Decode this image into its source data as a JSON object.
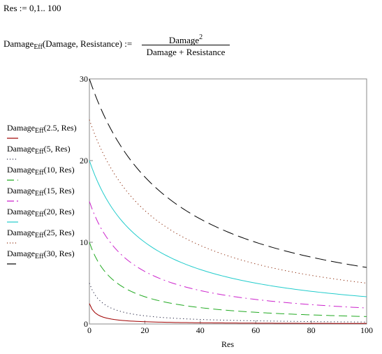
{
  "worksheet": {
    "range_definition": "Res := 0,1.. 100",
    "function_definition": {
      "lhs_base": "Damage",
      "lhs_sub": "Eff",
      "lhs_args": "(Damage, Resistance)",
      "assign_op": ":=",
      "numerator_base": "Damage",
      "numerator_exp": "2",
      "denominator": "Damage + Resistance"
    }
  },
  "chart_data": {
    "type": "line",
    "title": "",
    "xlabel": "Res",
    "ylabel": "",
    "xlim": [
      0,
      100
    ],
    "ylim": [
      0,
      30
    ],
    "x_ticks": [
      0,
      20,
      40,
      60,
      80,
      100
    ],
    "y_ticks": [
      0,
      10,
      20,
      30
    ],
    "grid": false,
    "legend_position": "left",
    "x_formula": "Res = 0..100 step 1",
    "series": [
      {
        "name": "Damage Eff (2.5, Res)",
        "label_base": "Damage",
        "label_sub": "Eff",
        "label_args": "(2.5, Res)",
        "damage": 2.5,
        "color": "#a00000",
        "dash": ""
      },
      {
        "name": "Damage Eff (5, Res)",
        "label_base": "Damage",
        "label_sub": "Eff",
        "label_args": "(5, Res)",
        "damage": 5,
        "color": "#1a1a3a",
        "dash": "1.2,3.6"
      },
      {
        "name": "Damage Eff (10, Res)",
        "label_base": "Damage",
        "label_sub": "Eff",
        "label_args": "(10, Res)",
        "damage": 10,
        "color": "#22aa22",
        "dash": "12,6"
      },
      {
        "name": "Damage Eff (15, Res)",
        "label_base": "Damage",
        "label_sub": "Eff",
        "label_args": "(15, Res)",
        "damage": 15,
        "color": "#cc22cc",
        "dash": "12,5,2,5"
      },
      {
        "name": "Damage Eff (20, Res)",
        "label_base": "Damage",
        "label_sub": "Eff",
        "label_args": "(20, Res)",
        "damage": 20,
        "color": "#22cccc",
        "dash": ""
      },
      {
        "name": "Damage Eff (25, Res)",
        "label_base": "Damage",
        "label_sub": "Eff",
        "label_args": "(25, Res)",
        "damage": 25,
        "color": "#882200",
        "dash": "1.2,3.8"
      },
      {
        "name": "Damage Eff (30, Res)",
        "label_base": "Damage",
        "label_sub": "Eff",
        "label_args": "(30, Res)",
        "damage": 30,
        "color": "#000000",
        "dash": "16,7"
      }
    ]
  }
}
